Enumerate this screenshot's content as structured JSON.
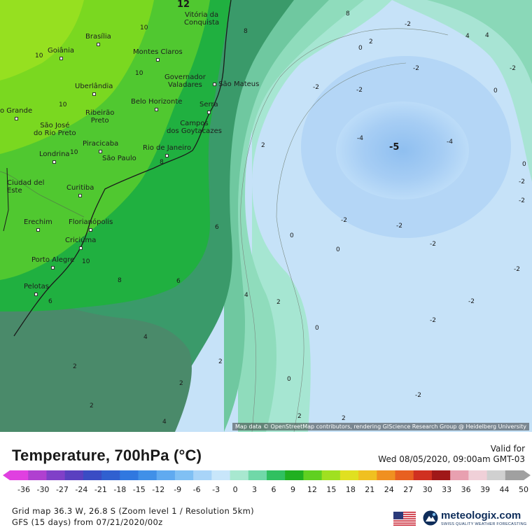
{
  "map": {
    "cities": [
      {
        "name": "Vitória da\nConquista",
        "dot": true
      },
      {
        "name": "Brasília",
        "dot": true
      },
      {
        "name": "Goiânia",
        "dot": true
      },
      {
        "name": "Montes Claros",
        "dot": true
      },
      {
        "name": "Governador\nValadares",
        "dot": true
      },
      {
        "name": "São Mateus",
        "dot": true
      },
      {
        "name": "Uberlândia",
        "dot": true
      },
      {
        "name": "Belo Horizonte",
        "dot": true
      },
      {
        "name": "Serra",
        "dot": true
      },
      {
        "name": "o Grande",
        "dot": true
      },
      {
        "name": "Ribeirão\nPreto",
        "dot": true
      },
      {
        "name": "São José\ndo Rio Preto",
        "dot": true
      },
      {
        "name": "Campos\ndos Goytacazes",
        "dot": true
      },
      {
        "name": "Piracicaba",
        "dot": true
      },
      {
        "name": "Londrina",
        "dot": true
      },
      {
        "name": "São Paulo",
        "dot": true
      },
      {
        "name": "Rio de Janeiro",
        "dot": true
      },
      {
        "name": "Ciudad del\nEste",
        "dot": true
      },
      {
        "name": "Curitiba",
        "dot": true
      },
      {
        "name": "Erechim",
        "dot": true
      },
      {
        "name": "Florianópolis",
        "dot": true
      },
      {
        "name": "Criciúma",
        "dot": true
      },
      {
        "name": "Porto Alegre",
        "dot": true
      },
      {
        "name": "Pelotas",
        "dot": true
      }
    ],
    "contour_labels": [
      "12",
      "10",
      "10",
      "8",
      "10",
      "10",
      "10",
      "8",
      "6",
      "8",
      "10",
      "8",
      "6",
      "4",
      "6",
      "2",
      "0",
      "2",
      "4",
      "2",
      "0",
      "-2",
      "-2",
      "-2",
      "4",
      "0",
      "-2",
      "-4",
      "-5",
      "-4",
      "0",
      "-2",
      "-2",
      "-2",
      "-2",
      "0",
      "2",
      "2",
      "0",
      "4",
      "2",
      "-2",
      "-2",
      "2",
      "0",
      "-2",
      "4",
      "2",
      "2",
      "-2",
      "-2",
      "-2"
    ],
    "attribution": "Map data © OpenStreetMap contributors, rendering GIScience Research Group @ Heidelberg University"
  },
  "legend": {
    "title": "Temperature, 700hPa (°C)",
    "valid_label": "Valid for",
    "valid_time": "Wed 08/05/2020, 09:00am GMT-03",
    "scale_ticks": [
      "-36",
      "-30",
      "-27",
      "-24",
      "-21",
      "-18",
      "-15",
      "-12",
      "-9",
      "-6",
      "-3",
      "0",
      "3",
      "6",
      "9",
      "12",
      "15",
      "18",
      "21",
      "24",
      "27",
      "30",
      "33",
      "36",
      "39",
      "44",
      "50"
    ],
    "scale_colors": [
      "#e040e0",
      "#b040d0",
      "#8040c8",
      "#5a40c0",
      "#3a4cc4",
      "#3060d0",
      "#3078e0",
      "#4090e8",
      "#60aaf0",
      "#80c0f4",
      "#a8d4f8",
      "#c8e6fa",
      "#a8e8d0",
      "#70d8a8",
      "#30c060",
      "#20b020",
      "#60d020",
      "#a0e020",
      "#e0e020",
      "#f0c020",
      "#f09020",
      "#e86020",
      "#d03020",
      "#a01818",
      "#e8a0b0",
      "#f0d0d8",
      "#d0d0d0",
      "#a0a0a0"
    ],
    "grid_info": "Grid map 36.3 W, 26.8 S (Zoom level 1 / Resolution 5km)",
    "model_info": "GFS (15 days) from  07/21/2020/00z",
    "brand_name": "meteologix.com",
    "brand_tagline": "SWISS QUALITY WEATHER FORECASTING"
  }
}
